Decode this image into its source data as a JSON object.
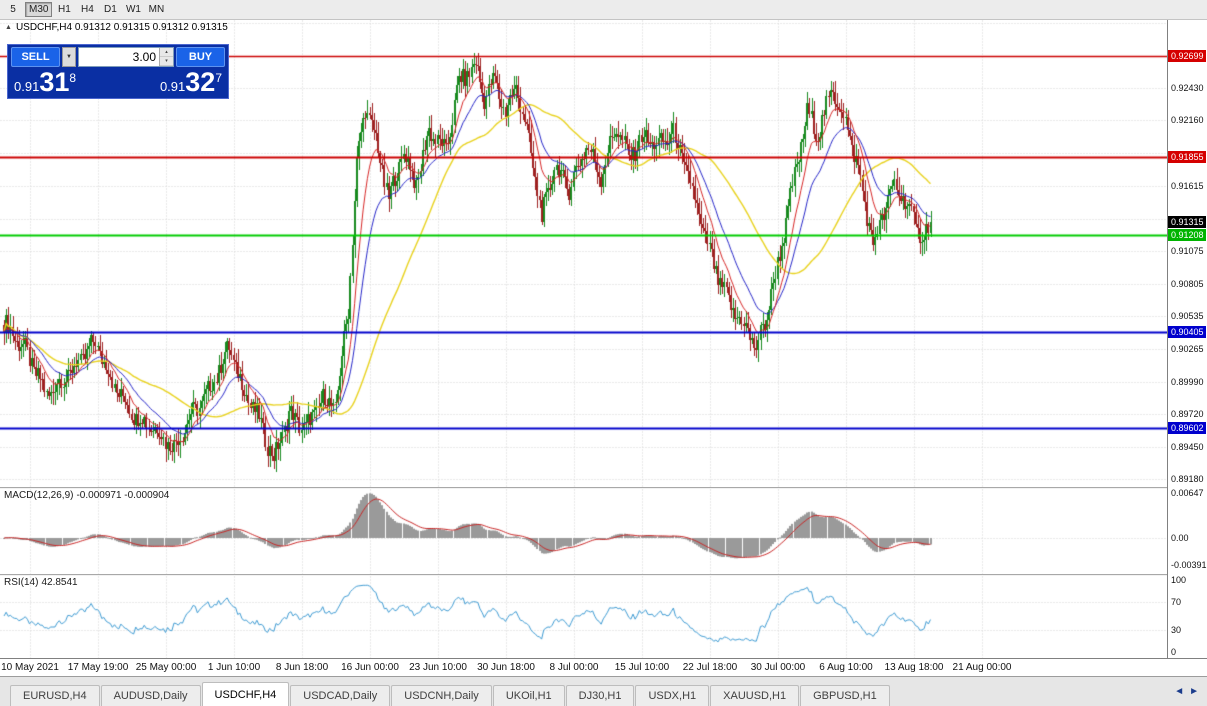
{
  "toolbar": {
    "timeframes": [
      {
        "label": "5",
        "active": false
      },
      {
        "label": "M30",
        "active": true
      },
      {
        "label": "H1",
        "active": false
      },
      {
        "label": "H4",
        "active": false
      },
      {
        "label": "D1",
        "active": false
      },
      {
        "label": "W1",
        "active": false
      },
      {
        "label": "MN",
        "active": false
      }
    ]
  },
  "icons": {
    "collapse": "▲",
    "dropdown": "▼",
    "spin_up": "▴",
    "spin_down": "▾",
    "tab_scroll_left": "◄",
    "tab_scroll_right": "►"
  },
  "chart": {
    "header": "USDCHF,H4  0.91312 0.91315 0.91312 0.91315"
  },
  "one_click": {
    "sell_label": "SELL",
    "buy_label": "BUY",
    "lot": "3.00",
    "sell_price_prefix": "0.91",
    "sell_price_big": "31",
    "sell_price_pip": "8",
    "buy_price_prefix": "0.91",
    "buy_price_big": "32",
    "buy_price_pip": "7"
  },
  "price_axis": {
    "labels": [
      {
        "text": "0.92699",
        "value": 0.92699,
        "badge": "red"
      },
      {
        "text": "0.92430",
        "value": 0.9243,
        "badge": "none"
      },
      {
        "text": "0.92160",
        "value": 0.9216,
        "badge": "none"
      },
      {
        "text": "0.91855",
        "value": 0.91855,
        "badge": "red"
      },
      {
        "text": "0.91615",
        "value": 0.91615,
        "badge": "none"
      },
      {
        "text": "0.91315",
        "value": 0.91315,
        "badge": "black"
      },
      {
        "text": "0.91208",
        "value": 0.91208,
        "badge": "green"
      },
      {
        "text": "0.91075",
        "value": 0.91075,
        "badge": "none"
      },
      {
        "text": "0.90805",
        "value": 0.90805,
        "badge": "none"
      },
      {
        "text": "0.90535",
        "value": 0.90535,
        "badge": "none"
      },
      {
        "text": "0.90405",
        "value": 0.90405,
        "badge": "blue"
      },
      {
        "text": "0.90265",
        "value": 0.90265,
        "badge": "none"
      },
      {
        "text": "0.89990",
        "value": 0.8999,
        "badge": "none"
      },
      {
        "text": "0.89720",
        "value": 0.8972,
        "badge": "none"
      },
      {
        "text": "0.89602",
        "value": 0.89602,
        "badge": "blue"
      },
      {
        "text": "0.89450",
        "value": 0.8945,
        "badge": "none"
      },
      {
        "text": "0.89180",
        "value": 0.8918,
        "badge": "none"
      }
    ]
  },
  "time_axis": {
    "labels": [
      "10 May 2021",
      "17 May 19:00",
      "25 May 00:00",
      "1 Jun 10:00",
      "8 Jun 18:00",
      "16 Jun 00:00",
      "23 Jun 10:00",
      "30 Jun 18:00",
      "8 Jul 00:00",
      "15 Jul 10:00",
      "22 Jul 18:00",
      "30 Jul 00:00",
      "6 Aug 10:00",
      "13 Aug 18:00",
      "21 Aug 00:00"
    ]
  },
  "macd_panel": {
    "label": "MACD(12,26,9)",
    "values": "-0.000971 -0.000904",
    "axis": [
      {
        "text": "0.00647",
        "value": 0.00647
      },
      {
        "text": "0.00",
        "value": 0
      },
      {
        "text": "-0.00391",
        "value": -0.00391
      }
    ]
  },
  "rsi_panel": {
    "label": "RSI(14)",
    "value": "42.8541",
    "axis": [
      {
        "text": "100",
        "value": 100
      },
      {
        "text": "70",
        "value": 70
      },
      {
        "text": "30",
        "value": 30
      },
      {
        "text": "0",
        "value": 0
      }
    ]
  },
  "tabs": [
    {
      "label": "EURUSD,H4",
      "active": false
    },
    {
      "label": "AUDUSD,Daily",
      "active": false
    },
    {
      "label": "USDCHF,H4",
      "active": true
    },
    {
      "label": "USDCAD,Daily",
      "active": false
    },
    {
      "label": "USDCNH,Daily",
      "active": false
    },
    {
      "label": "UKOil,H1",
      "active": false
    },
    {
      "label": "DJ30,H1",
      "active": false
    },
    {
      "label": "USDX,H1",
      "active": false
    },
    {
      "label": "XAUUSD,H1",
      "active": false
    },
    {
      "label": "GBPUSD,H1",
      "active": false
    }
  ],
  "chart_data": {
    "type": "candlestick",
    "symbol": "USDCHF",
    "timeframe": "H4",
    "ohlc_display": [
      0.91312,
      0.91315,
      0.91312,
      0.91315
    ],
    "last_price": 0.91315,
    "bar_count": 437,
    "y_range": [
      0.89115,
      0.92995
    ],
    "grid_step": 0.0027,
    "grid_prices": [
      0.9297,
      0.927,
      0.9243,
      0.9216,
      0.9189,
      0.91615,
      0.91345,
      0.91075,
      0.90805,
      0.90535,
      0.90265,
      0.8999,
      0.8972,
      0.8945,
      0.8918
    ],
    "anchors": [
      [
        0,
        0.9048
      ],
      [
        10,
        0.9025
      ],
      [
        20,
        0.8988
      ],
      [
        32,
        0.9008
      ],
      [
        43,
        0.9032
      ],
      [
        52,
        0.8995
      ],
      [
        62,
        0.897
      ],
      [
        70,
        0.8962
      ],
      [
        80,
        0.8944
      ],
      [
        86,
        0.8965
      ],
      [
        96,
        0.899
      ],
      [
        106,
        0.9028
      ],
      [
        112,
        0.8995
      ],
      [
        120,
        0.8968
      ],
      [
        127,
        0.8934
      ],
      [
        134,
        0.8972
      ],
      [
        142,
        0.896
      ],
      [
        150,
        0.8985
      ],
      [
        156,
        0.8978
      ],
      [
        162,
        0.906
      ],
      [
        166,
        0.918
      ],
      [
        170,
        0.9228
      ],
      [
        175,
        0.92
      ],
      [
        181,
        0.915
      ],
      [
        188,
        0.919
      ],
      [
        194,
        0.9163
      ],
      [
        200,
        0.9208
      ],
      [
        208,
        0.919
      ],
      [
        214,
        0.9248
      ],
      [
        222,
        0.9262
      ],
      [
        226,
        0.9235
      ],
      [
        231,
        0.925
      ],
      [
        236,
        0.9222
      ],
      [
        241,
        0.9246
      ],
      [
        248,
        0.919
      ],
      [
        253,
        0.9135
      ],
      [
        259,
        0.9178
      ],
      [
        266,
        0.916
      ],
      [
        274,
        0.9195
      ],
      [
        281,
        0.917
      ],
      [
        288,
        0.9212
      ],
      [
        294,
        0.9185
      ],
      [
        301,
        0.9202
      ],
      [
        308,
        0.9195
      ],
      [
        315,
        0.9205
      ],
      [
        322,
        0.917
      ],
      [
        330,
        0.9118
      ],
      [
        337,
        0.908
      ],
      [
        344,
        0.9055
      ],
      [
        350,
        0.9042
      ],
      [
        354,
        0.9026
      ],
      [
        358,
        0.9048
      ],
      [
        364,
        0.9095
      ],
      [
        371,
        0.916
      ],
      [
        378,
        0.9222
      ],
      [
        383,
        0.9205
      ],
      [
        390,
        0.9242
      ],
      [
        396,
        0.9215
      ],
      [
        402,
        0.9175
      ],
      [
        409,
        0.9112
      ],
      [
        414,
        0.914
      ],
      [
        419,
        0.9162
      ],
      [
        424,
        0.915
      ],
      [
        429,
        0.9128
      ],
      [
        433,
        0.9118
      ],
      [
        436,
        0.91315
      ]
    ],
    "spikes": [
      {
        "bar": 222,
        "high": 0.927
      },
      {
        "bar": 127,
        "low": 0.893
      },
      {
        "bar": 80,
        "low": 0.8938
      },
      {
        "bar": 354,
        "low": 0.9019
      },
      {
        "bar": 390,
        "high": 0.9246
      }
    ],
    "levels": [
      {
        "price": 0.92699,
        "color": "#cc0000",
        "width": 1.5
      },
      {
        "price": 0.91855,
        "color": "#cc0000",
        "width": 2
      },
      {
        "price": 0.91208,
        "color": "#00cc00",
        "width": 2
      },
      {
        "price": 0.90405,
        "color": "#0000cc",
        "width": 2
      },
      {
        "price": 0.89602,
        "color": "#0000cc",
        "width": 2
      }
    ],
    "ma_periods": {
      "fast": 10,
      "medium": 21,
      "slow": 50
    },
    "indicators": {
      "macd": {
        "params": [
          12,
          26,
          9
        ],
        "main": -0.000971,
        "signal": -0.000904,
        "axis_max": 0.00647,
        "axis_min": -0.00391
      },
      "rsi": {
        "period": 14,
        "value": 42.8541,
        "levels": [
          30,
          70
        ]
      }
    },
    "colors": {
      "bull": "#178a1e",
      "bear": "#9e2121",
      "ma_fast": "#d62525",
      "ma_medium": "#2525c8",
      "ma_slow": "#e8d21e",
      "macd_hist": "#9a9a9a",
      "macd_signal": "#c82525",
      "rsi": "#3d9ad2"
    }
  }
}
